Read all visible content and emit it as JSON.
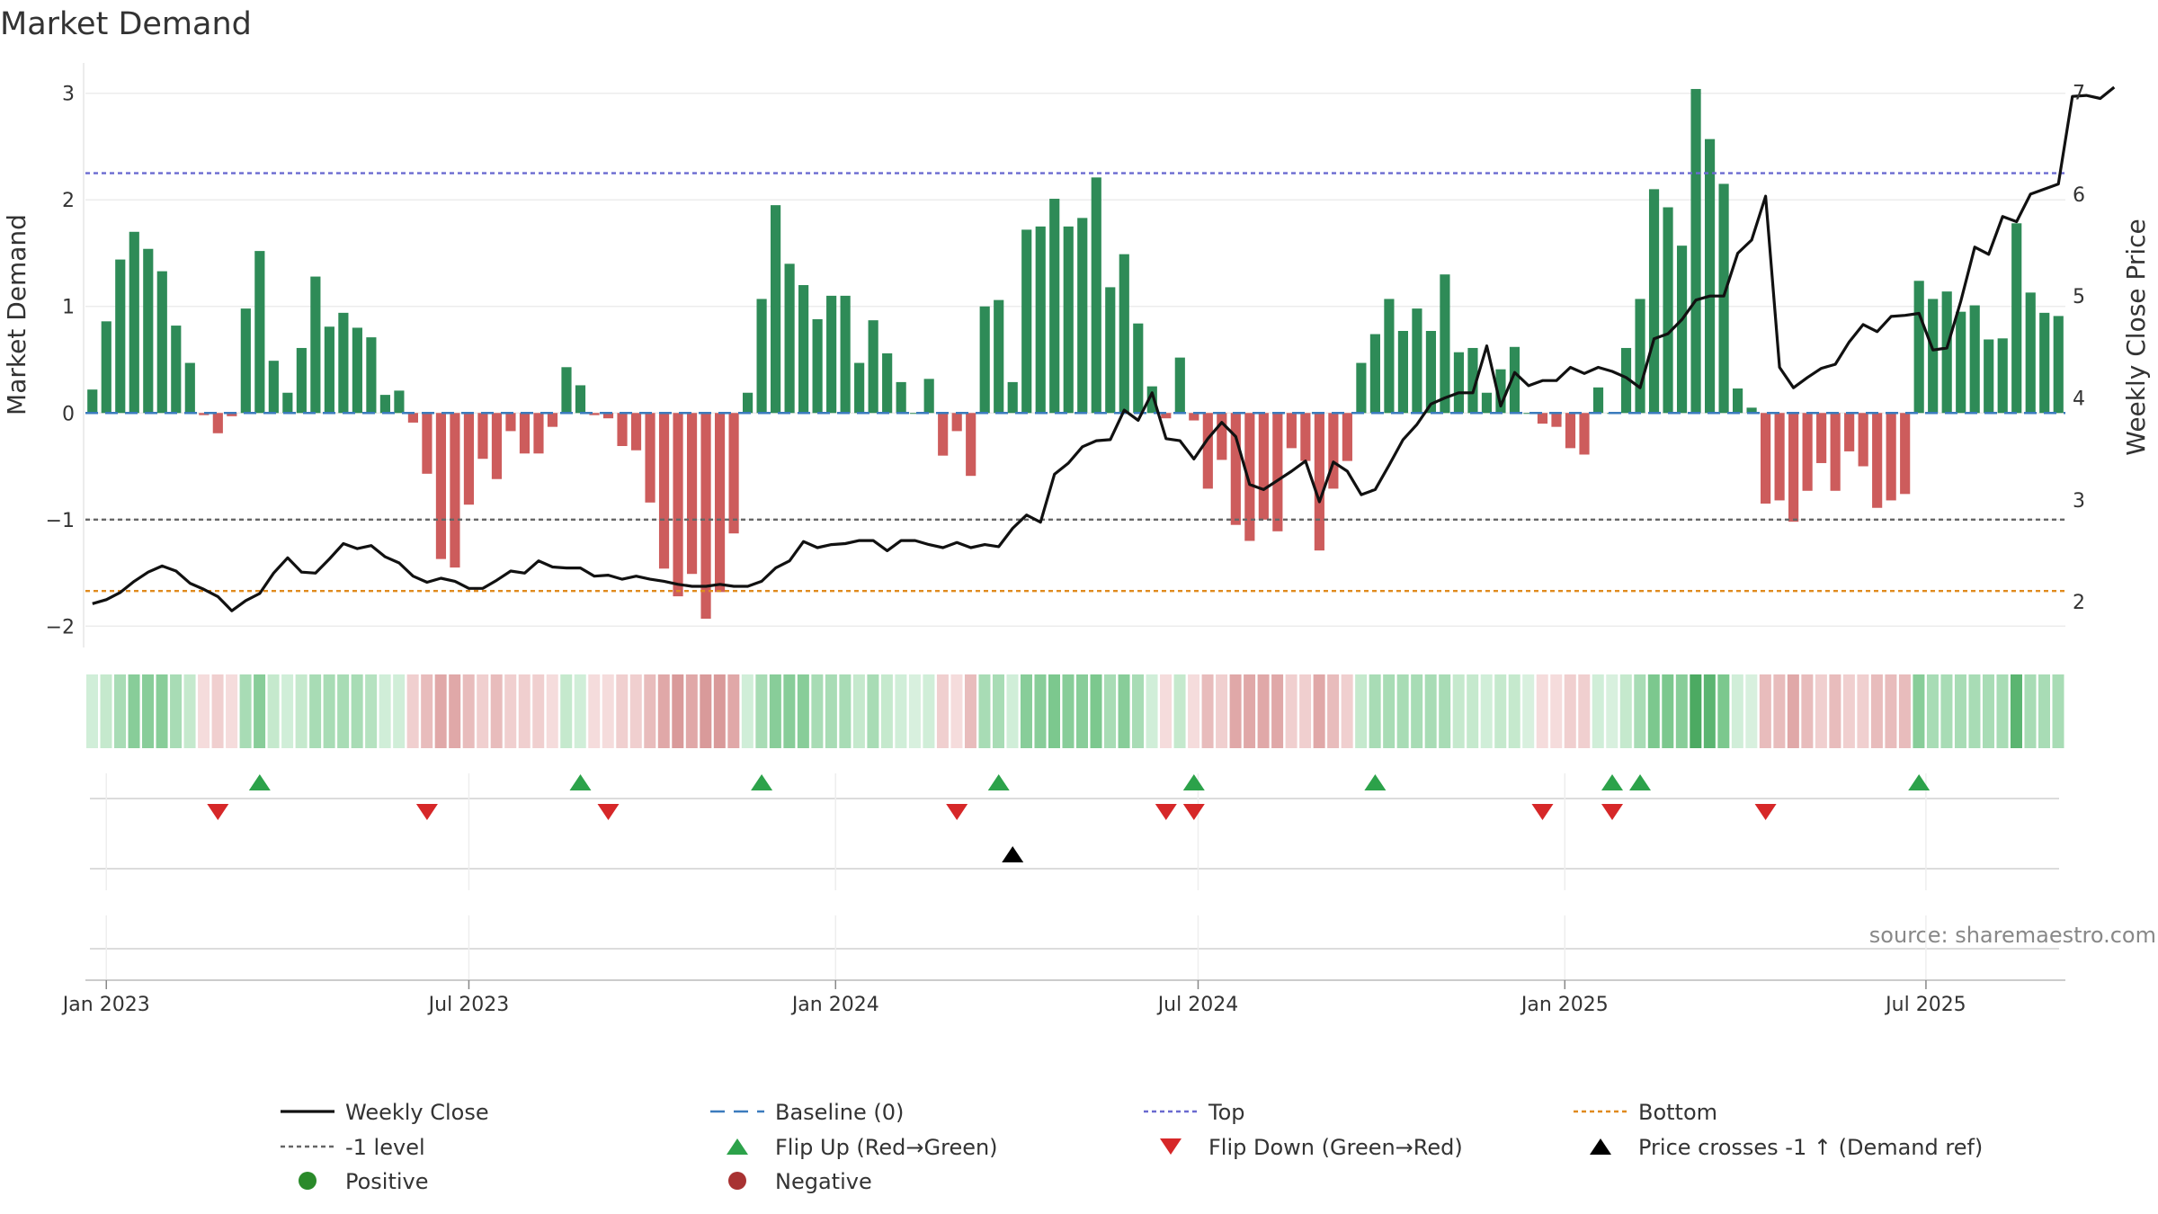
{
  "chart_data": {
    "type": "bar",
    "title": "Market Demand",
    "ylabel": "Market Demand",
    "y2label": "Weekly Close Price",
    "ylim": [
      -2.2,
      3.2
    ],
    "y2lim": [
      1.55,
      7.2
    ],
    "yticks": [
      3,
      2,
      1,
      0,
      -1,
      -2
    ],
    "ytick_labels": [
      "3",
      "2",
      "1",
      "0",
      "−1",
      "−2"
    ],
    "y2ticks": [
      7,
      6,
      5,
      4,
      3,
      2
    ],
    "y2tick_labels": [
      "7",
      "6",
      "5",
      "4",
      "3",
      "2"
    ],
    "xticks": [
      {
        "label": "Jan 2023",
        "index": 1
      },
      {
        "label": "Jul 2023",
        "index": 27
      },
      {
        "label": "Jan 2024",
        "index": 53.3
      },
      {
        "label": "Jul 2024",
        "index": 79.3
      },
      {
        "label": "Jan 2025",
        "index": 105.6
      },
      {
        "label": "Jul 2025",
        "index": 131.5
      }
    ],
    "reference_lines": {
      "baseline": 0,
      "top": 2.25,
      "minus_one": -1,
      "bottom": -1.67
    },
    "demand": [
      0.22,
      0.86,
      1.44,
      1.7,
      1.54,
      1.33,
      0.82,
      0.47,
      -0.02,
      -0.19,
      -0.03,
      0.98,
      1.52,
      0.49,
      0.19,
      0.61,
      1.28,
      0.81,
      0.94,
      0.8,
      0.71,
      0.17,
      0.21,
      -0.09,
      -0.57,
      -1.37,
      -1.45,
      -0.86,
      -0.43,
      -0.62,
      -0.17,
      -0.38,
      -0.38,
      -0.13,
      0.43,
      0.26,
      -0.02,
      -0.05,
      -0.31,
      -0.35,
      -0.84,
      -1.46,
      -1.72,
      -1.51,
      -1.93,
      -1.68,
      -1.13,
      0.19,
      1.07,
      1.95,
      1.4,
      1.2,
      0.88,
      1.1,
      1.1,
      0.47,
      0.87,
      0.56,
      0.29,
      0.0,
      0.32,
      -0.4,
      -0.17,
      -0.59,
      1.0,
      1.06,
      0.29,
      1.72,
      1.75,
      2.01,
      1.75,
      1.83,
      2.21,
      1.18,
      1.49,
      0.84,
      0.25,
      -0.05,
      0.52,
      -0.07,
      -0.71,
      -0.44,
      -1.05,
      -1.2,
      -1.0,
      -1.11,
      -0.33,
      -0.45,
      -1.29,
      -0.71,
      -0.45,
      0.47,
      0.74,
      1.07,
      0.77,
      0.98,
      0.77,
      1.3,
      0.57,
      0.61,
      0.19,
      0.41,
      0.62,
      0.0,
      -0.1,
      -0.13,
      -0.33,
      -0.39,
      0.24,
      0.0,
      0.61,
      1.07,
      2.1,
      1.93,
      1.57,
      3.04,
      2.57,
      2.15,
      0.23,
      0.05,
      -0.85,
      -0.82,
      -1.02,
      -0.73,
      -0.47,
      -0.73,
      -0.36,
      -0.5,
      -0.89,
      -0.82,
      -0.76,
      1.24,
      1.07,
      1.14,
      0.95,
      1.01,
      0.69,
      0.7,
      1.78,
      1.13,
      0.94,
      0.91
    ],
    "weekly_close": [
      1.98,
      2.02,
      2.09,
      2.2,
      2.29,
      2.35,
      2.3,
      2.18,
      2.12,
      2.05,
      1.91,
      2.01,
      2.08,
      2.28,
      2.43,
      2.29,
      2.28,
      2.42,
      2.57,
      2.52,
      2.55,
      2.44,
      2.38,
      2.25,
      2.19,
      2.23,
      2.2,
      2.13,
      2.13,
      2.21,
      2.3,
      2.28,
      2.4,
      2.34,
      2.33,
      2.33,
      2.25,
      2.26,
      2.22,
      2.25,
      2.22,
      2.2,
      2.17,
      2.15,
      2.15,
      2.17,
      2.15,
      2.15,
      2.2,
      2.33,
      2.4,
      2.59,
      2.53,
      2.56,
      2.57,
      2.6,
      2.6,
      2.5,
      2.6,
      2.6,
      2.56,
      2.53,
      2.58,
      2.53,
      2.56,
      2.54,
      2.72,
      2.85,
      2.78,
      3.25,
      3.36,
      3.52,
      3.58,
      3.59,
      3.88,
      3.78,
      4.05,
      3.6,
      3.58,
      3.4,
      3.6,
      3.76,
      3.62,
      3.15,
      3.1,
      3.19,
      3.28,
      3.38,
      2.98,
      3.37,
      3.28,
      3.05,
      3.1,
      3.34,
      3.59,
      3.74,
      3.94,
      4.0,
      4.05,
      4.05,
      4.51,
      3.92,
      4.25,
      4.12,
      4.17,
      4.17,
      4.3,
      4.24,
      4.3,
      4.26,
      4.2,
      4.1,
      4.58,
      4.63,
      4.77,
      4.96,
      5.0,
      5.0,
      5.42,
      5.55,
      5.98,
      4.3,
      4.1,
      4.2,
      4.29,
      4.33,
      4.55,
      4.72,
      4.65,
      4.8,
      4.81,
      4.83,
      4.47,
      4.49,
      4.95,
      5.48,
      5.41,
      5.78,
      5.73,
      6.0,
      6.05,
      6.1,
      6.96,
      6.97,
      6.94,
      7.05
    ],
    "flip_up": [
      12,
      35,
      48,
      65,
      79,
      92,
      109,
      111,
      131
    ],
    "flip_down": [
      9,
      24,
      37,
      62,
      77,
      79,
      104,
      109,
      120
    ],
    "price_cross": [
      66
    ],
    "strip_colors": [
      "#d0eed8",
      "#c5e9cd",
      "#a8dcb5",
      "#88cd99",
      "#88cd99",
      "#88cd99",
      "#a8dcb5",
      "#c5e9cd",
      "#f5dcdc",
      "#f0cfcf",
      "#f5dcdc",
      "#a8dcb5",
      "#88cd99",
      "#c5e9cd",
      "#d0eed8",
      "#c5e9cd",
      "#a8dcb5",
      "#a8dcb5",
      "#a8dcb5",
      "#a8dcb5",
      "#b5e2c0",
      "#d0eed8",
      "#d0eed8",
      "#f0cfcf",
      "#e8bcbc",
      "#e0a8a8",
      "#e0a8a8",
      "#e8bcbc",
      "#f0cfcf",
      "#e8bcbc",
      "#f0cfcf",
      "#f0cfcf",
      "#f0cfcf",
      "#f5dcdc",
      "#c5e9cd",
      "#d0eed8",
      "#f5dcdc",
      "#f5dcdc",
      "#f0cfcf",
      "#f0cfcf",
      "#e8bcbc",
      "#e0a8a8",
      "#d99a9a",
      "#e0a8a8",
      "#d99a9a",
      "#d99a9a",
      "#e0a8a8",
      "#d0eed8",
      "#a8dcb5",
      "#88cd99",
      "#88cd99",
      "#88cd99",
      "#a8dcb5",
      "#a8dcb5",
      "#a8dcb5",
      "#c5e9cd",
      "#a8dcb5",
      "#c5e9cd",
      "#d0eed8",
      "#d8f0de",
      "#d0eed8",
      "#f0cfcf",
      "#f5dcdc",
      "#e8bcbc",
      "#a8dcb5",
      "#a8dcb5",
      "#d0eed8",
      "#88cd99",
      "#88cd99",
      "#7cc88e",
      "#88cd99",
      "#88cd99",
      "#7cc88e",
      "#a8dcb5",
      "#88cd99",
      "#a8dcb5",
      "#d0eed8",
      "#f5dcdc",
      "#c5e9cd",
      "#f5dcdc",
      "#e8bcbc",
      "#f0cfcf",
      "#e0a8a8",
      "#e0a8a8",
      "#e0a8a8",
      "#e0a8a8",
      "#f0cfcf",
      "#f0cfcf",
      "#e0a8a8",
      "#e8bcbc",
      "#f0cfcf",
      "#c5e9cd",
      "#a8dcb5",
      "#a8dcb5",
      "#a8dcb5",
      "#a8dcb5",
      "#a8dcb5",
      "#a8dcb5",
      "#c5e9cd",
      "#c5e9cd",
      "#d0eed8",
      "#c5e9cd",
      "#c5e9cd",
      "#d8f0de",
      "#f5dcdc",
      "#f5dcdc",
      "#f0cfcf",
      "#f0cfcf",
      "#d0eed8",
      "#d8f0de",
      "#c5e9cd",
      "#a8dcb5",
      "#7cc88e",
      "#7cc88e",
      "#88cd99",
      "#4caa62",
      "#5bb571",
      "#7cc88e",
      "#d0eed8",
      "#d8f0de",
      "#e8bcbc",
      "#e8bcbc",
      "#e0a8a8",
      "#e8bcbc",
      "#f0cfcf",
      "#e8bcbc",
      "#f0cfcf",
      "#f0cfcf",
      "#e8bcbc",
      "#e8bcbc",
      "#e8bcbc",
      "#88cd99",
      "#a8dcb5",
      "#a8dcb5",
      "#a8dcb5",
      "#a8dcb5",
      "#a8dcb5",
      "#a8dcb5",
      "#5bb571",
      "#a8dcb5",
      "#a8dcb5",
      "#a8dcb5"
    ],
    "legend": [
      {
        "label": "Weekly Close",
        "kind": "line",
        "color": "#111111"
      },
      {
        "label": "Baseline (0)",
        "kind": "dash",
        "color": "#3b7bbd"
      },
      {
        "label": "Top",
        "kind": "dot",
        "color": "#6a6ad0"
      },
      {
        "label": "Bottom",
        "kind": "dot",
        "color": "#e08a1e"
      },
      {
        "label": "-1 level",
        "kind": "dot",
        "color": "#666666"
      },
      {
        "label": "Flip Up (Red→Green)",
        "kind": "tri-up",
        "color": "#2ca24a"
      },
      {
        "label": "Flip Down (Green→Red)",
        "kind": "tri-down",
        "color": "#d62728"
      },
      {
        "label": "Price crosses -1 ↑ (Demand ref)",
        "kind": "tri-up",
        "color": "#000000"
      },
      {
        "label": "Positive",
        "kind": "circle",
        "color": "#2a8a2a"
      },
      {
        "label": "Negative",
        "kind": "circle",
        "color": "#a83232"
      }
    ],
    "source": "source: sharemaestro.com"
  },
  "colors": {
    "positive_bar": "#2e8b57",
    "negative_bar": "#cd5c5c",
    "grid": "#ececec"
  }
}
